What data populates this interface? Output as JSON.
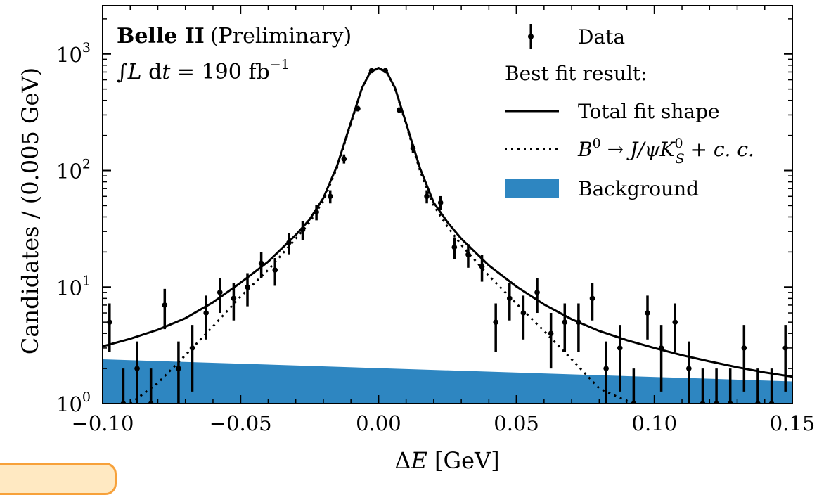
{
  "chart_data": {
    "type": "scatter",
    "title": "",
    "annotation": {
      "experiment": "Belle II",
      "status": "(Preliminary)",
      "lumi_prefix": "∫",
      "lumi_L": "L",
      "lumi_dt": " d",
      "lumi_t": "t",
      "lumi_value": " = 190 fb",
      "lumi_exp": "−1"
    },
    "xlabel": {
      "delta": "Δ",
      "var": "E",
      "unit": " [GeV]"
    },
    "ylabel": "Candidates / (0.005 GeV)",
    "xlim": [
      -0.1,
      0.15
    ],
    "ylim": [
      1,
      2600
    ],
    "yscale": "log",
    "grid": false,
    "legend_position": "top-right",
    "x_ticks": [
      {
        "value": -0.1,
        "label": "−0.10"
      },
      {
        "value": -0.05,
        "label": "−0.05"
      },
      {
        "value": 0.0,
        "label": "0.00"
      },
      {
        "value": 0.05,
        "label": "0.05"
      },
      {
        "value": 0.1,
        "label": "0.10"
      },
      {
        "value": 0.15,
        "label": "0.15"
      }
    ],
    "y_ticks": [
      {
        "value": 1,
        "base": "10",
        "exp": "0"
      },
      {
        "value": 10,
        "base": "10",
        "exp": "1"
      },
      {
        "value": 100,
        "base": "10",
        "exp": "2"
      },
      {
        "value": 1000,
        "base": "10",
        "exp": "3"
      }
    ],
    "legend": {
      "data": "Data",
      "header": "Best fit result:",
      "total": "Total fit shape",
      "signal_B": "B",
      "signal_B_sup": "0",
      "signal_arrow": " → ",
      "signal_Jpsi": "J/ψK",
      "signal_K_sup": "0",
      "signal_K_sub": "S",
      "signal_cc": " + c. c.",
      "background": "Background"
    },
    "colors": {
      "background_fill": "#2e86c1",
      "data": "#000000",
      "total_line": "#000000",
      "signal_line": "#000000",
      "accent_tab": "#f7a13a"
    },
    "series": [
      {
        "name": "Data",
        "type": "errorbar",
        "x": [
          -0.0975,
          -0.0925,
          -0.0875,
          -0.0825,
          -0.0775,
          -0.0725,
          -0.0675,
          -0.0625,
          -0.0575,
          -0.0525,
          -0.0475,
          -0.0425,
          -0.0375,
          -0.0325,
          -0.0275,
          -0.0225,
          -0.0175,
          -0.0125,
          -0.0075,
          -0.0025,
          0.0025,
          0.0075,
          0.0125,
          0.0175,
          0.0225,
          0.0275,
          0.0325,
          0.0375,
          0.0425,
          0.0475,
          0.0525,
          0.0575,
          0.0625,
          0.0675,
          0.0725,
          0.0775,
          0.0825,
          0.0875,
          0.0925,
          0.0975,
          0.1025,
          0.1075,
          0.1125,
          0.1175,
          0.1225,
          0.1275,
          0.1325,
          0.1375,
          0.1425,
          0.1475
        ],
        "y": [
          5,
          1,
          2,
          1,
          7,
          2,
          3,
          6,
          9,
          8,
          10,
          16,
          14,
          24,
          31,
          44,
          60,
          126,
          340,
          720,
          720,
          330,
          155,
          60,
          53,
          22,
          19,
          15,
          5,
          8,
          6,
          9,
          4,
          5,
          5,
          8,
          2,
          3,
          1,
          6,
          3,
          5,
          2,
          1,
          1,
          1,
          3,
          1,
          1,
          3
        ]
      },
      {
        "name": "Total fit shape",
        "type": "line",
        "x": [
          -0.1,
          -0.09,
          -0.08,
          -0.07,
          -0.06,
          -0.05,
          -0.04,
          -0.03,
          -0.025,
          -0.02,
          -0.015,
          -0.01,
          -0.006,
          -0.003,
          0,
          0.003,
          0.006,
          0.01,
          0.015,
          0.02,
          0.025,
          0.03,
          0.04,
          0.05,
          0.06,
          0.07,
          0.08,
          0.09,
          0.1,
          0.11,
          0.12,
          0.13,
          0.14,
          0.15
        ],
        "y": [
          3.1,
          3.6,
          4.3,
          5.4,
          7.4,
          10.9,
          16.5,
          28,
          38,
          58,
          110,
          260,
          510,
          700,
          760,
          700,
          510,
          255,
          105,
          53,
          36,
          26,
          15.3,
          10.1,
          7.1,
          5.3,
          4.2,
          3.5,
          3.0,
          2.6,
          2.3,
          2.05,
          1.85,
          1.7
        ]
      },
      {
        "name": "B0 → J/ψK0S + c.c.",
        "type": "line",
        "x": [
          -0.09,
          -0.08,
          -0.07,
          -0.06,
          -0.05,
          -0.04,
          -0.03,
          -0.025,
          -0.02,
          -0.015,
          -0.01,
          -0.006,
          -0.003,
          0,
          0.003,
          0.006,
          0.01,
          0.015,
          0.02,
          0.025,
          0.03,
          0.04,
          0.05,
          0.06,
          0.07,
          0.08,
          0.09,
          0.095
        ],
        "y": [
          1.0,
          1.5,
          2.6,
          4.6,
          8.3,
          14,
          26,
          36,
          55,
          106,
          255,
          505,
          695,
          755,
          695,
          505,
          250,
          100,
          50,
          33,
          23,
          12.5,
          7.2,
          4.2,
          2.4,
          1.35,
          1.05,
          0.9
        ]
      },
      {
        "name": "Background",
        "type": "area",
        "x": [
          -0.1,
          0.15
        ],
        "y": [
          2.4,
          1.55
        ]
      }
    ]
  }
}
